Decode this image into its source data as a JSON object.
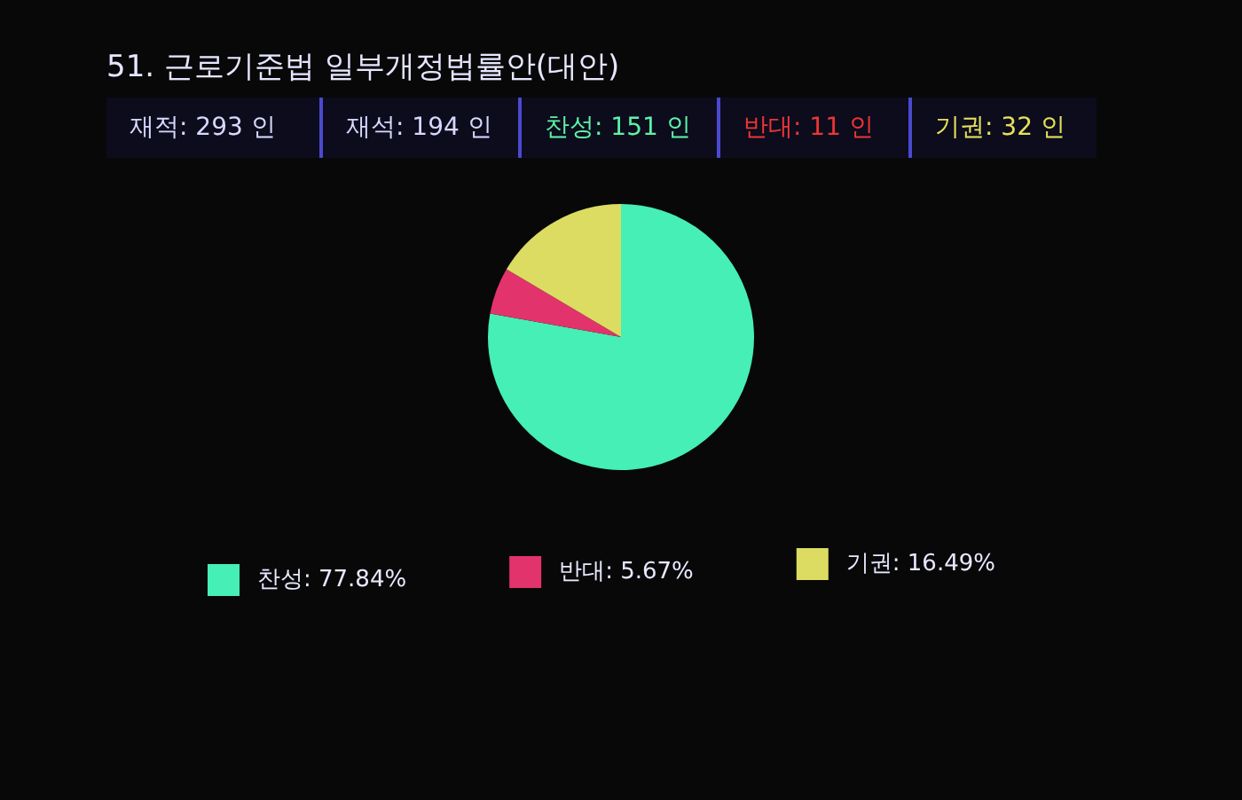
{
  "chart_data": {
    "type": "pie",
    "title": "51. 근로기준법 일부개정법률안(대안)",
    "annotations": [
      "재적: 293 인",
      "재석: 194 인",
      "찬성: 151 인",
      "반대: 11 인",
      "기권: 32 인"
    ],
    "categories": [
      "찬성",
      "반대",
      "기권"
    ],
    "values": [
      77.84,
      5.67,
      16.49
    ],
    "colors": [
      "#45efb5",
      "#e2336c",
      "#dcdc62"
    ],
    "value_labels": [
      "77.84%",
      "5.67%",
      "16.49%"
    ],
    "legend": "bottom"
  }
}
